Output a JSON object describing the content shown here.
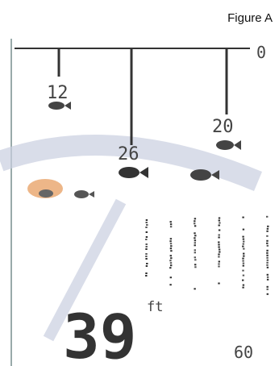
{
  "figure_label": "Figure A",
  "scale": {
    "top": "0",
    "bottom": "60"
  },
  "fish_depths": [
    "12",
    "26",
    "20"
  ],
  "depth_reading": {
    "value": "39",
    "unit": "ft"
  },
  "colors": {
    "lcd_ink": "#3a3a3a",
    "marker": "#e8a46a",
    "watermark": "#c9cfe0"
  }
}
